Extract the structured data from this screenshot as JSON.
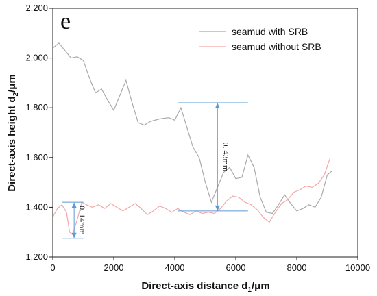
{
  "chart_data": {
    "type": "line",
    "panel_label": "e",
    "xlabel": "Direct-axis distance d",
    "xlabel_sub": "1",
    "xlabel_unit": "/μm",
    "ylabel": "Direct-axis height d",
    "ylabel_sub": "2",
    "ylabel_unit": "/μm",
    "xlim": [
      0,
      10000
    ],
    "ylim": [
      1200,
      2200
    ],
    "x_ticks": [
      0,
      2000,
      4000,
      6000,
      8000,
      10000
    ],
    "x_tick_labels": [
      "0",
      "2000",
      "4000",
      "6000",
      "8000",
      "10000"
    ],
    "y_ticks": [
      1200,
      1400,
      1600,
      1800,
      2000,
      2200
    ],
    "y_tick_labels": [
      "1,200",
      "1,400",
      "1,600",
      "1,800",
      "2,000",
      "2,200"
    ],
    "legend_position": "top-right",
    "grid": false,
    "series": [
      {
        "name": "seamud with SRB",
        "color": "#a9a9a9",
        "points": [
          [
            0,
            2040
          ],
          [
            200,
            2060
          ],
          [
            400,
            2030
          ],
          [
            600,
            2000
          ],
          [
            800,
            2005
          ],
          [
            1000,
            1990
          ],
          [
            1200,
            1920
          ],
          [
            1400,
            1860
          ],
          [
            1600,
            1875
          ],
          [
            1800,
            1830
          ],
          [
            2000,
            1790
          ],
          [
            2200,
            1850
          ],
          [
            2400,
            1910
          ],
          [
            2600,
            1820
          ],
          [
            2800,
            1740
          ],
          [
            3000,
            1730
          ],
          [
            3200,
            1745
          ],
          [
            3500,
            1755
          ],
          [
            3800,
            1760
          ],
          [
            4000,
            1750
          ],
          [
            4200,
            1800
          ],
          [
            4400,
            1720
          ],
          [
            4600,
            1640
          ],
          [
            4800,
            1600
          ],
          [
            5000,
            1500
          ],
          [
            5200,
            1420
          ],
          [
            5400,
            1480
          ],
          [
            5600,
            1540
          ],
          [
            5800,
            1560
          ],
          [
            6000,
            1515
          ],
          [
            6200,
            1520
          ],
          [
            6400,
            1610
          ],
          [
            6600,
            1560
          ],
          [
            6800,
            1440
          ],
          [
            7000,
            1380
          ],
          [
            7200,
            1375
          ],
          [
            7400,
            1410
          ],
          [
            7600,
            1450
          ],
          [
            7800,
            1415
          ],
          [
            8000,
            1385
          ],
          [
            8200,
            1395
          ],
          [
            8400,
            1410
          ],
          [
            8600,
            1400
          ],
          [
            8800,
            1440
          ],
          [
            9000,
            1530
          ],
          [
            9150,
            1545
          ]
        ]
      },
      {
        "name": "seamud without SRB",
        "color": "#f4a6a6",
        "points": [
          [
            0,
            1360
          ],
          [
            150,
            1395
          ],
          [
            300,
            1410
          ],
          [
            450,
            1380
          ],
          [
            550,
            1300
          ],
          [
            650,
            1290
          ],
          [
            800,
            1350
          ],
          [
            950,
            1420
          ],
          [
            1100,
            1410
          ],
          [
            1300,
            1400
          ],
          [
            1500,
            1410
          ],
          [
            1700,
            1395
          ],
          [
            1900,
            1415
          ],
          [
            2100,
            1400
          ],
          [
            2300,
            1385
          ],
          [
            2500,
            1400
          ],
          [
            2700,
            1415
          ],
          [
            2900,
            1395
          ],
          [
            3100,
            1370
          ],
          [
            3300,
            1385
          ],
          [
            3500,
            1405
          ],
          [
            3700,
            1395
          ],
          [
            3900,
            1380
          ],
          [
            4100,
            1395
          ],
          [
            4300,
            1380
          ],
          [
            4500,
            1370
          ],
          [
            4700,
            1385
          ],
          [
            4900,
            1375
          ],
          [
            5100,
            1380
          ],
          [
            5300,
            1375
          ],
          [
            5500,
            1395
          ],
          [
            5700,
            1425
          ],
          [
            5900,
            1445
          ],
          [
            6100,
            1440
          ],
          [
            6300,
            1420
          ],
          [
            6500,
            1410
          ],
          [
            6700,
            1390
          ],
          [
            6900,
            1360
          ],
          [
            7100,
            1340
          ],
          [
            7300,
            1380
          ],
          [
            7500,
            1415
          ],
          [
            7700,
            1430
          ],
          [
            7900,
            1460
          ],
          [
            8100,
            1470
          ],
          [
            8300,
            1485
          ],
          [
            8500,
            1480
          ],
          [
            8700,
            1495
          ],
          [
            8900,
            1530
          ],
          [
            9100,
            1600
          ]
        ]
      }
    ],
    "annotations": [
      {
        "label": "0. 43mm",
        "x": 5400,
        "y_from": 1385,
        "y_to": 1820,
        "line_x_from": 4100,
        "line_x_to": 6400
      },
      {
        "label": "0. 14mm",
        "x": 700,
        "y_from": 1275,
        "y_to": 1420,
        "line_x_from": 300,
        "line_x_to": 1000
      }
    ]
  }
}
